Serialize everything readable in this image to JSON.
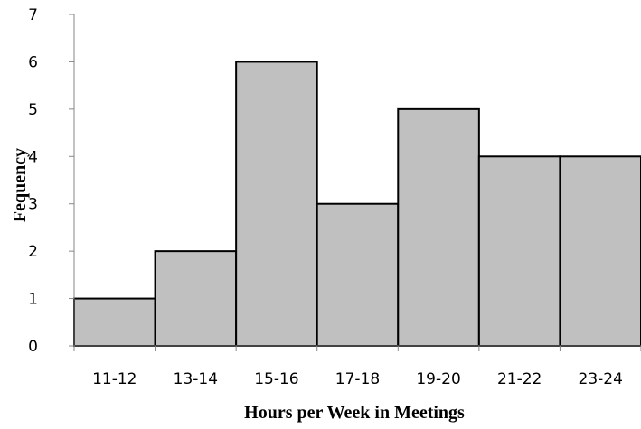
{
  "chart_data": {
    "type": "bar",
    "title": "",
    "xlabel": "Hours per Week in Meetings",
    "ylabel": "Fequency",
    "categories": [
      "11-12",
      "13-14",
      "15-16",
      "17-18",
      "19-20",
      "21-22",
      "23-24"
    ],
    "values": [
      1,
      2,
      6,
      3,
      5,
      4,
      4
    ],
    "ylim": [
      0,
      7
    ],
    "yticks": [
      "0",
      "1",
      "2",
      "3",
      "4",
      "5",
      "6",
      "7"
    ],
    "grid": false,
    "legend": "none",
    "bar_color": "#c0c0c0",
    "bar_edge_color": "#000000"
  }
}
